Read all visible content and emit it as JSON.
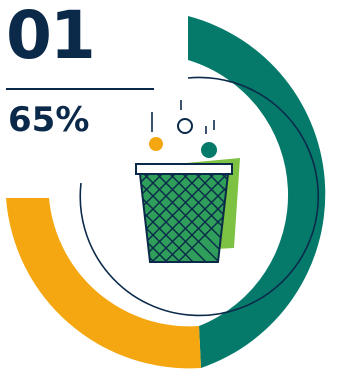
{
  "infographic": {
    "number": "01",
    "percent_label": "65%",
    "percent_value": 65,
    "colors": {
      "primary_dark": "#0b2a4a",
      "teal": "#057a6b",
      "amber": "#f5a712",
      "green": "#7dc242",
      "bin_green": "#2f9e5a",
      "white": "#ffffff"
    },
    "icon": "trash-bin-icon"
  }
}
